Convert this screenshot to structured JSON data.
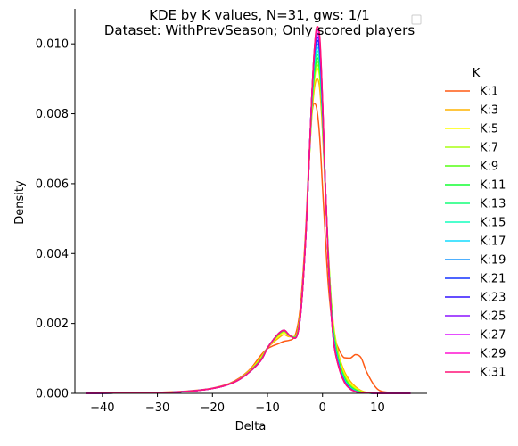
{
  "chart_data": {
    "type": "line",
    "title": "KDE by K values, N=31, gws: 1/1",
    "subtitle": "Dataset: WithPrevSeason; Only scored players",
    "xlabel": "Delta",
    "ylabel": "Density",
    "xlim": [
      -45,
      19
    ],
    "ylim": [
      0,
      0.011
    ],
    "xticks": [
      "−40",
      "−30",
      "−20",
      "−10",
      "0",
      "10"
    ],
    "xtick_values": [
      -40,
      -30,
      -20,
      -10,
      0,
      10
    ],
    "yticks": [
      "0.000",
      "0.002",
      "0.004",
      "0.006",
      "0.008",
      "0.010"
    ],
    "ytick_values": [
      0,
      0.002,
      0.004,
      0.006,
      0.008,
      0.01
    ],
    "grid": false,
    "legend_title": "K",
    "legend_position": "right",
    "x": [
      -43,
      -35,
      -30,
      -25,
      -20,
      -17,
      -15,
      -13,
      -11,
      -10,
      -9,
      -8,
      -7,
      -6,
      -5,
      -4,
      -3,
      -2.5,
      -2,
      -1.5,
      -1,
      -0.5,
      0,
      0.5,
      1,
      1.5,
      2,
      3,
      4,
      5,
      6,
      7,
      8,
      10,
      12,
      16
    ],
    "series": [
      {
        "name": "K:1",
        "color": "#ff5a14",
        "values": [
          0,
          1e-05,
          3e-05,
          6e-05,
          0.00015,
          0.00028,
          0.00045,
          0.00072,
          0.00113,
          0.00128,
          0.00136,
          0.00142,
          0.00149,
          0.00152,
          0.00165,
          0.00252,
          0.00485,
          0.0066,
          0.0079,
          0.0083,
          0.0081,
          0.0073,
          0.0059,
          0.0045,
          0.0032,
          0.00235,
          0.00172,
          0.00125,
          0.00102,
          0.00101,
          0.00111,
          0.00102,
          0.00062,
          0.00012,
          3e-05,
          0
        ]
      },
      {
        "name": "K:3",
        "color": "#ffb400",
        "values": [
          0,
          1e-05,
          2e-05,
          5e-05,
          0.00014,
          0.00027,
          0.00043,
          0.0007,
          0.00108,
          0.0013,
          0.00145,
          0.00158,
          0.00168,
          0.00162,
          0.00163,
          0.00235,
          0.0047,
          0.0064,
          0.0078,
          0.0087,
          0.009,
          0.0087,
          0.0075,
          0.0058,
          0.0041,
          0.00285,
          0.00195,
          0.00108,
          0.00062,
          0.00036,
          0.00019,
          8e-05,
          3e-05,
          0,
          0,
          0
        ]
      },
      {
        "name": "K:5",
        "color": "#ffff00",
        "values": [
          0,
          1e-05,
          2e-05,
          5e-05,
          0.00014,
          0.00026,
          0.00042,
          0.00068,
          0.00105,
          0.00131,
          0.00148,
          0.00163,
          0.00174,
          0.00164,
          0.00162,
          0.00232,
          0.0046,
          0.0064,
          0.0079,
          0.0089,
          0.0093,
          0.009,
          0.0078,
          0.006,
          0.0042,
          0.00285,
          0.0019,
          0.00102,
          0.00055,
          0.00029,
          0.00015,
          6e-05,
          2e-05,
          0,
          0,
          0
        ]
      },
      {
        "name": "K:7",
        "color": "#aaff14",
        "values": [
          0,
          1e-05,
          2e-05,
          5e-05,
          0.00014,
          0.00026,
          0.00042,
          0.00067,
          0.00103,
          0.00131,
          0.0015,
          0.00167,
          0.00177,
          0.00165,
          0.00161,
          0.0023,
          0.0046,
          0.0064,
          0.008,
          0.009,
          0.0094,
          0.0091,
          0.0078,
          0.006,
          0.0042,
          0.0028,
          0.00185,
          0.00097,
          0.0005,
          0.00025,
          0.00012,
          5e-05,
          2e-05,
          0,
          0,
          0
        ]
      },
      {
        "name": "K:9",
        "color": "#55ff14",
        "values": [
          0,
          1e-05,
          2e-05,
          5e-05,
          0.00014,
          0.00026,
          0.00041,
          0.00066,
          0.00102,
          0.00131,
          0.00151,
          0.00169,
          0.00179,
          0.00166,
          0.0016,
          0.00228,
          0.0046,
          0.0064,
          0.008,
          0.0091,
          0.0095,
          0.0092,
          0.0079,
          0.006,
          0.0041,
          0.0027,
          0.00178,
          0.00092,
          0.00046,
          0.00022,
          0.0001,
          4e-05,
          1e-05,
          0,
          0,
          0
        ]
      },
      {
        "name": "K:11",
        "color": "#14ff32",
        "values": [
          0,
          1e-05,
          2e-05,
          5e-05,
          0.00014,
          0.00026,
          0.00041,
          0.00066,
          0.00101,
          0.00131,
          0.00152,
          0.0017,
          0.0018,
          0.00166,
          0.0016,
          0.00227,
          0.0046,
          0.0064,
          0.0081,
          0.0092,
          0.0096,
          0.0093,
          0.0079,
          0.006,
          0.0041,
          0.0027,
          0.00172,
          0.00088,
          0.00043,
          0.0002,
          9e-05,
          3e-05,
          1e-05,
          0,
          0,
          0
        ]
      },
      {
        "name": "K:13",
        "color": "#14ff78",
        "values": [
          0,
          1e-05,
          2e-05,
          5e-05,
          0.00014,
          0.00026,
          0.00041,
          0.00065,
          0.001,
          0.0013,
          0.00152,
          0.00171,
          0.00181,
          0.00166,
          0.00159,
          0.00226,
          0.0046,
          0.0064,
          0.0081,
          0.0093,
          0.0097,
          0.0094,
          0.008,
          0.006,
          0.0041,
          0.0026,
          0.00168,
          0.00085,
          0.0004,
          0.00018,
          8e-05,
          3e-05,
          1e-05,
          0,
          0,
          0
        ]
      },
      {
        "name": "K:15",
        "color": "#14ffbe",
        "values": [
          0,
          1e-05,
          2e-05,
          5e-05,
          0.00014,
          0.00026,
          0.00041,
          0.00065,
          0.001,
          0.0013,
          0.00152,
          0.00171,
          0.00181,
          0.00166,
          0.00159,
          0.00225,
          0.0046,
          0.0064,
          0.0082,
          0.0094,
          0.0098,
          0.0095,
          0.008,
          0.006,
          0.004,
          0.0026,
          0.00164,
          0.00082,
          0.00038,
          0.00017,
          7e-05,
          3e-05,
          1e-05,
          0,
          0,
          0
        ]
      },
      {
        "name": "K:17",
        "color": "#14dcff",
        "values": [
          0,
          1e-05,
          2e-05,
          5e-05,
          0.00014,
          0.00026,
          0.00041,
          0.00065,
          0.00099,
          0.0013,
          0.00152,
          0.00171,
          0.00181,
          0.00166,
          0.00158,
          0.00224,
          0.0046,
          0.0064,
          0.0082,
          0.0095,
          0.0099,
          0.0096,
          0.0081,
          0.006,
          0.004,
          0.0025,
          0.0016,
          0.0008,
          0.00036,
          0.00016,
          6e-05,
          2e-05,
          1e-05,
          0,
          0,
          0
        ]
      },
      {
        "name": "K:19",
        "color": "#1496ff",
        "values": [
          0,
          1e-05,
          2e-05,
          5e-05,
          0.00014,
          0.00026,
          0.00041,
          0.00065,
          0.00099,
          0.0013,
          0.00152,
          0.00171,
          0.00181,
          0.00166,
          0.00158,
          0.00224,
          0.0046,
          0.0064,
          0.0083,
          0.0096,
          0.01,
          0.0097,
          0.0082,
          0.006,
          0.004,
          0.0025,
          0.00157,
          0.00078,
          0.00035,
          0.00015,
          6e-05,
          2e-05,
          1e-05,
          0,
          0,
          0
        ]
      },
      {
        "name": "K:21",
        "color": "#1432ff",
        "values": [
          0,
          1e-05,
          2e-05,
          5e-05,
          0.00014,
          0.00026,
          0.00041,
          0.00065,
          0.00099,
          0.0013,
          0.00152,
          0.00171,
          0.00181,
          0.00166,
          0.00158,
          0.00223,
          0.0046,
          0.0064,
          0.0083,
          0.0096,
          0.0101,
          0.0098,
          0.0082,
          0.006,
          0.004,
          0.0025,
          0.00155,
          0.00076,
          0.00034,
          0.00014,
          5e-05,
          2e-05,
          1e-05,
          0,
          0,
          0
        ]
      },
      {
        "name": "K:23",
        "color": "#3214ff",
        "values": [
          0,
          1e-05,
          2e-05,
          5e-05,
          0.00014,
          0.00026,
          0.00041,
          0.00065,
          0.00099,
          0.0013,
          0.00152,
          0.00171,
          0.00181,
          0.00166,
          0.00158,
          0.00223,
          0.0046,
          0.0064,
          0.0083,
          0.0097,
          0.0102,
          0.0099,
          0.0083,
          0.006,
          0.004,
          0.0025,
          0.00153,
          0.00075,
          0.00033,
          0.00014,
          5e-05,
          2e-05,
          1e-05,
          0,
          0,
          0
        ]
      },
      {
        "name": "K:25",
        "color": "#8c14ff",
        "values": [
          0,
          1e-05,
          2e-05,
          5e-05,
          0.00014,
          0.00026,
          0.00041,
          0.00065,
          0.00099,
          0.0013,
          0.00152,
          0.00171,
          0.00181,
          0.00166,
          0.00158,
          0.00223,
          0.0046,
          0.0064,
          0.0083,
          0.0097,
          0.0103,
          0.01,
          0.0083,
          0.006,
          0.004,
          0.0025,
          0.00152,
          0.00074,
          0.00032,
          0.00013,
          5e-05,
          2e-05,
          1e-05,
          0,
          0,
          0
        ]
      },
      {
        "name": "K:27",
        "color": "#dc14ff",
        "values": [
          0,
          1e-05,
          2e-05,
          5e-05,
          0.00014,
          0.00026,
          0.00041,
          0.00065,
          0.00099,
          0.0013,
          0.00152,
          0.00171,
          0.00181,
          0.00166,
          0.00158,
          0.00223,
          0.0046,
          0.0064,
          0.0083,
          0.0098,
          0.0104,
          0.0101,
          0.0084,
          0.006,
          0.004,
          0.0025,
          0.00151,
          0.00073,
          0.00032,
          0.00013,
          5e-05,
          2e-05,
          1e-05,
          0,
          0,
          0
        ]
      },
      {
        "name": "K:29",
        "color": "#ff14d2",
        "values": [
          0,
          1e-05,
          2e-05,
          5e-05,
          0.00014,
          0.00026,
          0.00041,
          0.00065,
          0.00099,
          0.0013,
          0.00152,
          0.00171,
          0.00181,
          0.00166,
          0.00158,
          0.00223,
          0.0046,
          0.0064,
          0.0083,
          0.0098,
          0.0104,
          0.0101,
          0.0084,
          0.006,
          0.004,
          0.0025,
          0.0015,
          0.00073,
          0.00031,
          0.00013,
          5e-05,
          2e-05,
          1e-05,
          0,
          0,
          0
        ]
      },
      {
        "name": "K:31",
        "color": "#ff1478",
        "values": [
          0,
          1e-05,
          2e-05,
          5e-05,
          0.00014,
          0.00026,
          0.00041,
          0.00065,
          0.00099,
          0.0013,
          0.00152,
          0.00171,
          0.00181,
          0.00166,
          0.00158,
          0.00223,
          0.0046,
          0.0064,
          0.0083,
          0.0098,
          0.0105,
          0.0102,
          0.0084,
          0.006,
          0.004,
          0.0025,
          0.0015,
          0.00072,
          0.00031,
          0.00013,
          5e-05,
          2e-05,
          1e-05,
          0,
          0,
          0
        ]
      }
    ]
  }
}
